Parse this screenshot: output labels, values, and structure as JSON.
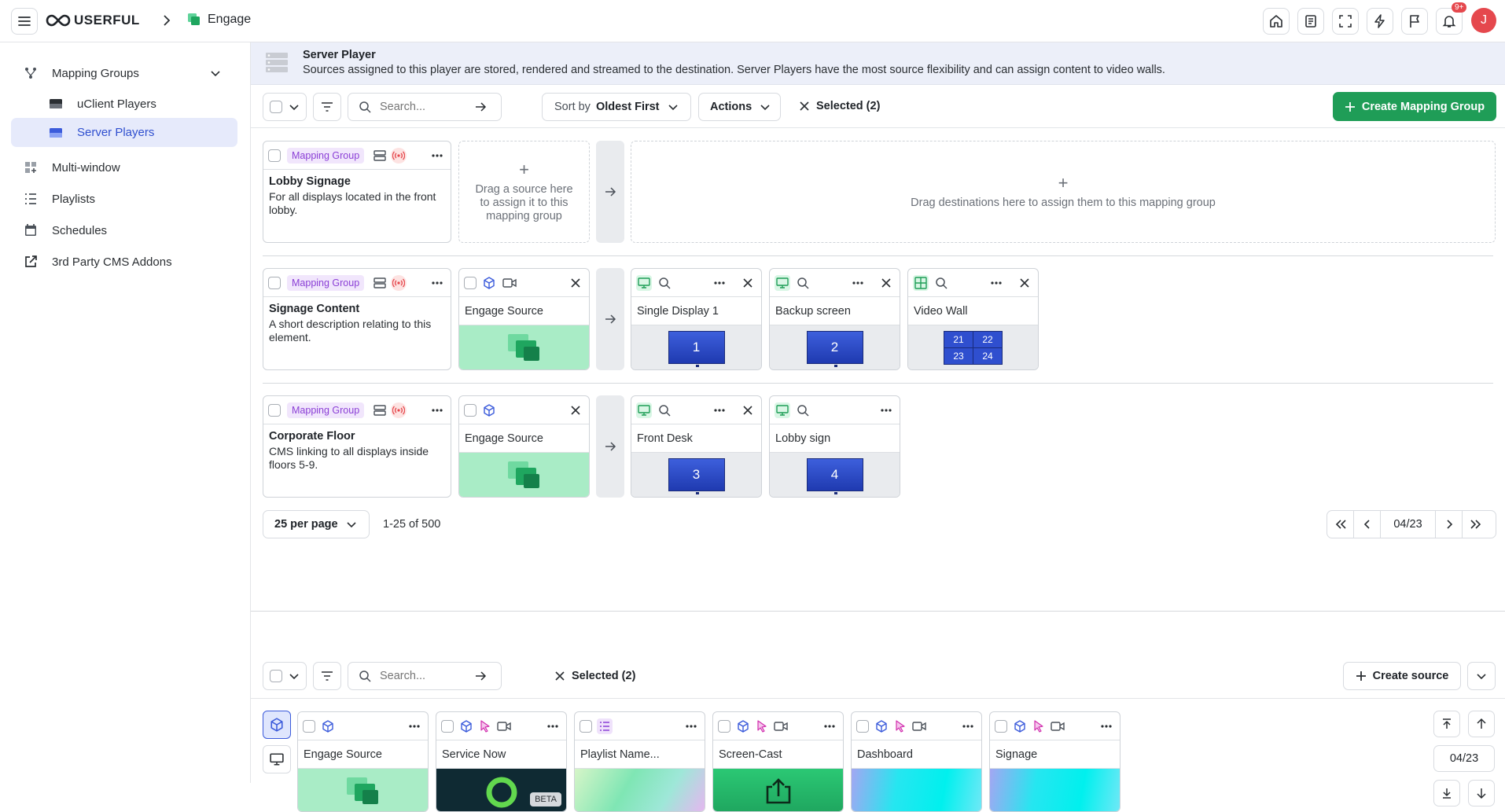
{
  "app": {
    "brand": "USERFUL",
    "breadcrumb": "Engage",
    "notif_badge": "9+",
    "avatar": "J"
  },
  "sidebar": {
    "group": "Mapping Groups",
    "sub": [
      "uClient Players",
      "Server Players"
    ],
    "items": [
      "Multi-window",
      "Playlists",
      "Schedules",
      "3rd Party CMS Addons"
    ]
  },
  "banner": {
    "title": "Server Player",
    "desc": "Sources assigned to this player are stored, rendered and streamed to the destination. Server Players have the most source flexibility and can assign content to video walls."
  },
  "toolbar": {
    "search_placeholder": "Search...",
    "sort_prefix": "Sort by",
    "sort_value": "Oldest First",
    "actions": "Actions",
    "selected": "Selected (2)",
    "create": "Create Mapping Group"
  },
  "groups": [
    {
      "tag": "Mapping Group",
      "title": "Lobby Signage",
      "desc": "For all displays located in the front lobby."
    },
    {
      "tag": "Mapping Group",
      "title": "Signage Content",
      "desc": "A short description relating to this element."
    },
    {
      "tag": "Mapping Group",
      "title": "Corporate Floor",
      "desc": "CMS linking to all displays inside floors 5-9."
    }
  ],
  "drop": {
    "source": "Drag a source here to assign it to this mapping group",
    "dest": "Drag destinations here to assign them to this mapping group",
    "plus": "+"
  },
  "row2": {
    "source": "Engage Source",
    "dests": [
      {
        "label": "Single Display 1",
        "num": "1"
      },
      {
        "label": "Backup screen",
        "num": "2"
      },
      {
        "label": "Video Wall",
        "wall": [
          "21",
          "22",
          "23",
          "24"
        ]
      }
    ]
  },
  "row3": {
    "source": "Engage Source",
    "dests": [
      {
        "label": "Front Desk",
        "num": "3"
      },
      {
        "label": "Lobby sign",
        "num": "4"
      }
    ]
  },
  "pagination": {
    "per_page": "25 per page",
    "range": "1-25 of 500",
    "page": "04/23"
  },
  "bottom": {
    "search_placeholder": "Search...",
    "selected": "Selected (2)",
    "create": "Create source",
    "page": "04/23",
    "sources": [
      {
        "label": "Engage Source"
      },
      {
        "label": "Service Now",
        "badge": "BETA"
      },
      {
        "label": "Playlist Name..."
      },
      {
        "label": "Screen-Cast"
      },
      {
        "label": "Dashboard"
      },
      {
        "label": "Signage"
      }
    ]
  }
}
